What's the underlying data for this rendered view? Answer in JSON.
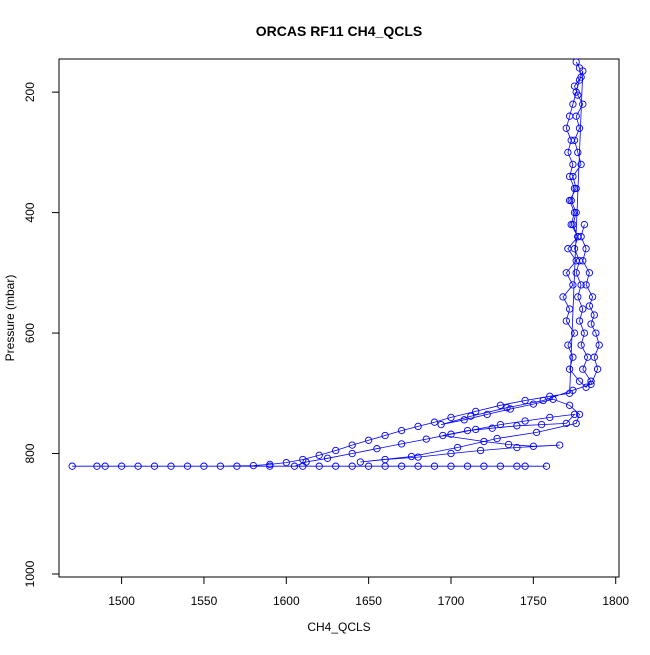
{
  "chart_data": {
    "type": "scatter",
    "title": "ORCAS RF11 CH4_QCLS",
    "xlabel": "CH4_QCLS",
    "ylabel": "Pressure (mbar)",
    "xlim": [
      1462,
      1802
    ],
    "ylim": [
      1005,
      145
    ],
    "y_reversed": true,
    "grid": false,
    "legend": "none",
    "x_ticks": [
      1500,
      1550,
      1600,
      1650,
      1700,
      1750,
      1800
    ],
    "y_ticks": [
      200,
      400,
      600,
      800,
      1000
    ],
    "series": [
      {
        "color": "#0000ff",
        "marker": "open-circle",
        "connected": true,
        "points": [
          [
            1776,
            150
          ],
          [
            1778,
            160
          ],
          [
            1779,
            175
          ],
          [
            1775,
            190
          ],
          [
            1777,
            205
          ],
          [
            1780,
            220
          ],
          [
            1776,
            240
          ],
          [
            1778,
            260
          ],
          [
            1775,
            280
          ],
          [
            1777,
            300
          ],
          [
            1779,
            320
          ],
          [
            1774,
            340
          ],
          [
            1776,
            360
          ],
          [
            1772,
            380
          ],
          [
            1775,
            400
          ],
          [
            1773,
            420
          ],
          [
            1777,
            440
          ],
          [
            1771,
            460
          ],
          [
            1776,
            480
          ],
          [
            1770,
            500
          ],
          [
            1774,
            520
          ],
          [
            1768,
            540
          ],
          [
            1772,
            560
          ],
          [
            1770,
            580
          ],
          [
            1775,
            600
          ],
          [
            1771,
            620
          ],
          [
            1774,
            640
          ],
          [
            1772,
            660
          ],
          [
            1778,
            680
          ],
          [
            1782,
            690
          ],
          [
            1785,
            680
          ],
          [
            1780,
            660
          ],
          [
            1783,
            640
          ],
          [
            1779,
            620
          ],
          [
            1781,
            600
          ],
          [
            1778,
            580
          ],
          [
            1780,
            560
          ],
          [
            1777,
            540
          ],
          [
            1779,
            520
          ],
          [
            1776,
            500
          ],
          [
            1778,
            480
          ],
          [
            1775,
            460
          ],
          [
            1777,
            440
          ],
          [
            1774,
            420
          ],
          [
            1776,
            400
          ],
          [
            1773,
            380
          ],
          [
            1775,
            360
          ],
          [
            1772,
            340
          ],
          [
            1774,
            320
          ],
          [
            1771,
            300
          ],
          [
            1773,
            280
          ],
          [
            1770,
            260
          ],
          [
            1772,
            240
          ],
          [
            1774,
            220
          ],
          [
            1776,
            200
          ],
          [
            1778,
            180
          ],
          [
            1780,
            165
          ],
          [
            1772,
            700
          ],
          [
            1760,
            705
          ],
          [
            1745,
            712
          ],
          [
            1730,
            720
          ],
          [
            1715,
            730
          ],
          [
            1700,
            740
          ],
          [
            1690,
            748
          ],
          [
            1680,
            755
          ],
          [
            1670,
            762
          ],
          [
            1660,
            770
          ],
          [
            1650,
            778
          ],
          [
            1640,
            786
          ],
          [
            1630,
            795
          ],
          [
            1620,
            803
          ],
          [
            1610,
            810
          ],
          [
            1600,
            815
          ],
          [
            1590,
            818
          ],
          [
            1580,
            820
          ],
          [
            1560,
            821
          ],
          [
            1540,
            821
          ],
          [
            1520,
            821
          ],
          [
            1500,
            821
          ],
          [
            1485,
            821
          ],
          [
            1470,
            821
          ],
          [
            1490,
            821
          ],
          [
            1510,
            821
          ],
          [
            1530,
            821
          ],
          [
            1550,
            821
          ],
          [
            1570,
            821
          ],
          [
            1590,
            821
          ],
          [
            1610,
            821
          ],
          [
            1630,
            821
          ],
          [
            1650,
            821
          ],
          [
            1670,
            821
          ],
          [
            1690,
            821
          ],
          [
            1710,
            821
          ],
          [
            1730,
            821
          ],
          [
            1745,
            821
          ],
          [
            1758,
            821
          ],
          [
            1740,
            821
          ],
          [
            1720,
            821
          ],
          [
            1700,
            821
          ],
          [
            1680,
            821
          ],
          [
            1660,
            821
          ],
          [
            1640,
            821
          ],
          [
            1620,
            821
          ],
          [
            1605,
            821
          ],
          [
            1612,
            814
          ],
          [
            1625,
            808
          ],
          [
            1640,
            800
          ],
          [
            1655,
            792
          ],
          [
            1670,
            784
          ],
          [
            1685,
            776
          ],
          [
            1700,
            768
          ],
          [
            1715,
            760
          ],
          [
            1730,
            752
          ],
          [
            1745,
            746
          ],
          [
            1760,
            740
          ],
          [
            1775,
            735
          ],
          [
            1770,
            750
          ],
          [
            1755,
            752
          ],
          [
            1740,
            754
          ],
          [
            1725,
            758
          ],
          [
            1710,
            762
          ],
          [
            1695,
            770
          ],
          [
            1720,
            780
          ],
          [
            1735,
            785
          ],
          [
            1750,
            788
          ],
          [
            1766,
            786
          ],
          [
            1740,
            790
          ],
          [
            1718,
            795
          ],
          [
            1700,
            800
          ],
          [
            1680,
            806
          ],
          [
            1660,
            810
          ],
          [
            1645,
            814
          ],
          [
            1676,
            805
          ],
          [
            1704,
            790
          ],
          [
            1728,
            775
          ],
          [
            1752,
            765
          ],
          [
            1776,
            750
          ],
          [
            1778,
            735
          ],
          [
            1772,
            720
          ],
          [
            1762,
            710
          ],
          [
            1750,
            718
          ],
          [
            1736,
            726
          ],
          [
            1722,
            735
          ],
          [
            1708,
            744
          ],
          [
            1694,
            752
          ],
          [
            1712,
            738
          ],
          [
            1734,
            724
          ],
          [
            1756,
            712
          ],
          [
            1774,
            695
          ],
          [
            1785,
            685
          ],
          [
            1789,
            660
          ],
          [
            1787,
            640
          ],
          [
            1790,
            620
          ],
          [
            1788,
            600
          ],
          [
            1785,
            585
          ],
          [
            1787,
            570
          ],
          [
            1784,
            555
          ],
          [
            1786,
            540
          ],
          [
            1782,
            520
          ],
          [
            1784,
            500
          ],
          [
            1780,
            480
          ],
          [
            1782,
            460
          ],
          [
            1779,
            440
          ],
          [
            1781,
            420
          ]
        ]
      }
    ]
  }
}
